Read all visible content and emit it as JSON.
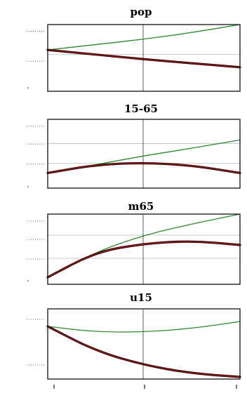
{
  "chart_data": [
    {
      "type": "line",
      "title": "pop",
      "x": [
        0,
        0.25,
        0.5,
        0.75,
        1
      ],
      "ylim": [
        0,
        1
      ],
      "grid_y": [
        0.55
      ],
      "series": [
        {
          "color": "#2a8a2a",
          "values": [
            0.62,
            0.7,
            0.78,
            0.88,
            1.0
          ]
        },
        {
          "color": "#2a0505",
          "values": [
            0.62,
            0.55,
            0.48,
            0.42,
            0.36
          ]
        }
      ]
    },
    {
      "type": "line",
      "title": "15-65",
      "x": [
        0,
        0.25,
        0.5,
        0.75,
        1
      ],
      "ylim": [
        0,
        1
      ],
      "grid_y": [
        0.65,
        0.36
      ],
      "series": [
        {
          "color": "#2a8a2a",
          "values": [
            0.22,
            0.34,
            0.47,
            0.58,
            0.7
          ]
        },
        {
          "color": "#2a0505",
          "values": [
            0.22,
            0.34,
            0.37,
            0.33,
            0.22
          ]
        }
      ]
    },
    {
      "type": "line",
      "title": "m65",
      "x": [
        0,
        0.25,
        0.5,
        0.75,
        1
      ],
      "ylim": [
        0,
        1
      ],
      "grid_y": [
        0.7,
        0.37
      ],
      "series": [
        {
          "color": "#2a8a2a",
          "values": [
            0.1,
            0.46,
            0.7,
            0.86,
            1.0
          ]
        },
        {
          "color": "#2a0505",
          "values": [
            0.1,
            0.46,
            0.58,
            0.62,
            0.56
          ]
        }
      ]
    },
    {
      "type": "line",
      "title": "u15",
      "x": [
        0,
        0.25,
        0.5,
        0.75,
        1
      ],
      "ylim": [
        0,
        1
      ],
      "grid_y": [],
      "series": [
        {
          "color": "#2a8a2a",
          "values": [
            0.75,
            0.67,
            0.67,
            0.72,
            0.82
          ]
        },
        {
          "color": "#2a0505",
          "values": [
            0.75,
            0.4,
            0.2,
            0.08,
            0.03
          ]
        }
      ]
    }
  ]
}
